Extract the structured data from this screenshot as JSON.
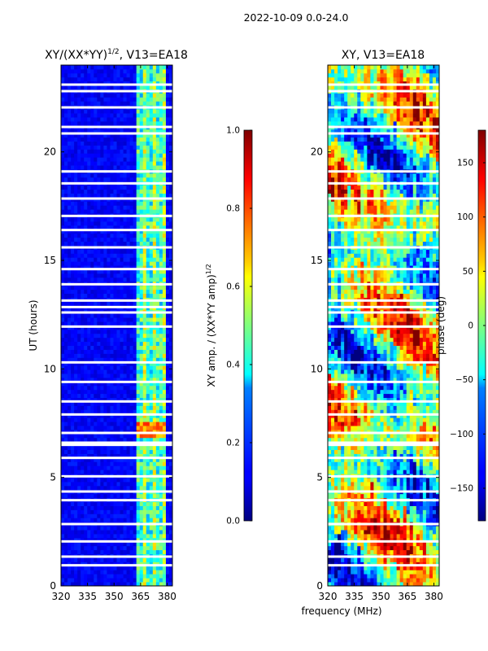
{
  "suptitle": "2022-10-09 0.0-24.0",
  "chart_data": [
    {
      "type": "heatmap",
      "title_main": "XY/(XX*YY)",
      "title_sup": "1/2",
      "title_tail": ", V13=EA18",
      "ylabel": "UT (hours)",
      "xlim": [
        320,
        383
      ],
      "ylim": [
        0,
        24
      ],
      "xticks": [
        "320",
        "335",
        "350",
        "365",
        "380"
      ],
      "yticks": [
        "0",
        "5",
        "10",
        "15",
        "20"
      ],
      "colorbar": {
        "label_main": "XY amp. / (XX*YY amp)",
        "label_sup": "1/2",
        "range": [
          0.0,
          1.0
        ],
        "ticks": [
          "0.0",
          "0.2",
          "0.4",
          "0.6",
          "0.8",
          "1.0"
        ]
      },
      "bright_band_mhz": [
        362,
        380
      ],
      "flag_hours": [
        0.95,
        1.35,
        2.05,
        2.85,
        3.95,
        4.35,
        5.05,
        5.9,
        6.5,
        6.6,
        7.05,
        7.9,
        8.5,
        9.4,
        10.3,
        11.95,
        12.6,
        12.85,
        13.15,
        13.9,
        14.6,
        15.6,
        16.4,
        17.05,
        17.85,
        18.55,
        19.1,
        20.85,
        21.15,
        22.05,
        22.8,
        23.1
      ]
    },
    {
      "type": "heatmap",
      "title_main": "XY, V13=EA18",
      "ylabel": "",
      "xlabel": "frequency (MHz)",
      "xlim": [
        320,
        383
      ],
      "ylim": [
        0,
        24
      ],
      "xticks": [
        "320",
        "335",
        "350",
        "365",
        "380"
      ],
      "yticks": [
        "0",
        "5",
        "10",
        "15",
        "20"
      ],
      "colorbar": {
        "label_main": "phase (deg)",
        "range": [
          -180,
          180
        ],
        "ticks": [
          "−150",
          "−100",
          "−50",
          "0",
          "50",
          "100",
          "150"
        ]
      },
      "flag_hours": [
        0.95,
        1.35,
        2.05,
        2.85,
        3.95,
        4.35,
        5.05,
        5.9,
        6.5,
        6.6,
        7.05,
        7.9,
        8.5,
        9.4,
        10.3,
        11.95,
        12.6,
        12.85,
        13.15,
        13.9,
        14.6,
        15.6,
        16.4,
        17.05,
        17.85,
        18.55,
        19.1,
        20.85,
        21.15,
        22.05,
        22.8,
        23.1
      ]
    }
  ]
}
